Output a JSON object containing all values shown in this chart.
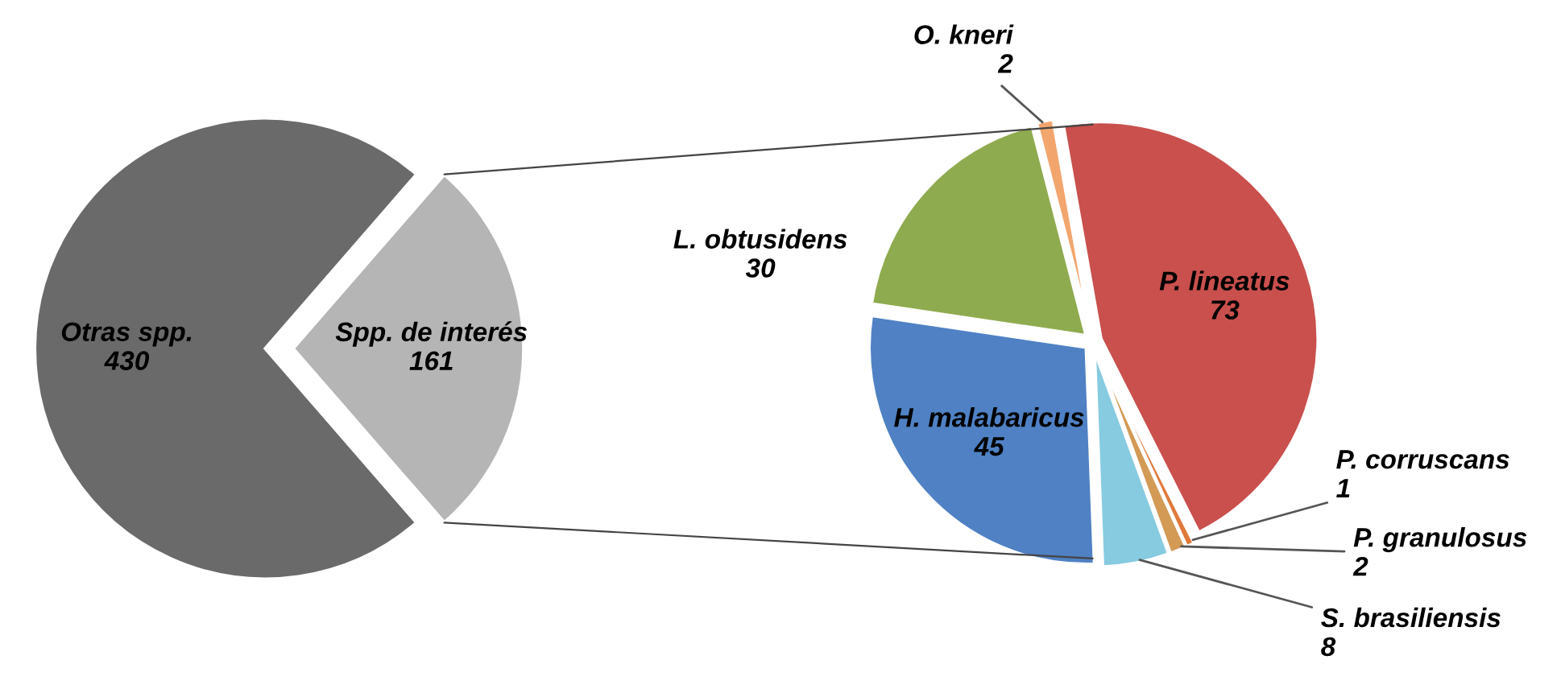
{
  "chart_data": [
    {
      "type": "pie",
      "categories": [
        "Otras spp.",
        "Spp. de interés"
      ],
      "values": [
        430,
        161
      ],
      "colors": [
        "#6a6a6a",
        "#b5b5b5"
      ],
      "data_labels": true
    },
    {
      "type": "pie",
      "categories": [
        "P. lineatus",
        "P. corruscans",
        "P. granulosus",
        "S. brasiliensis",
        "H. malabaricus",
        "L. obtusidens",
        "O. kneri"
      ],
      "values": [
        73,
        1,
        2,
        8,
        45,
        30,
        2
      ],
      "colors": [
        "#c9504d",
        "#e0793a",
        "#d39a55",
        "#86cbe0",
        "#4f81c4",
        "#8fab4f",
        "#f2a66e"
      ],
      "data_labels": true
    }
  ]
}
